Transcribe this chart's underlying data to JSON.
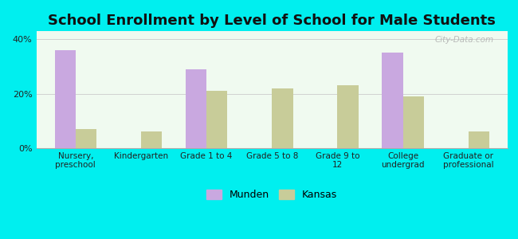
{
  "title": "School Enrollment by Level of School for Male Students",
  "categories": [
    "Nursery,\npreschool",
    "Kindergarten",
    "Grade 1 to 4",
    "Grade 5 to 8",
    "Grade 9 to\n12",
    "College\nundergrad",
    "Graduate or\nprofessional"
  ],
  "munden_values": [
    36,
    0,
    29,
    0,
    0,
    35,
    0
  ],
  "kansas_values": [
    7,
    6,
    21,
    22,
    23,
    19,
    6
  ],
  "munden_color": "#c9a8e0",
  "kansas_color": "#c8cc99",
  "background_color": "#00efef",
  "plot_bg_start": "#f0faf0",
  "plot_bg_end": "#ffffff",
  "yticks": [
    0,
    20,
    40
  ],
  "ylim": [
    0,
    43
  ],
  "bar_width": 0.32,
  "title_fontsize": 13,
  "legend_labels": [
    "Munden",
    "Kansas"
  ],
  "watermark": "City-Data.com"
}
